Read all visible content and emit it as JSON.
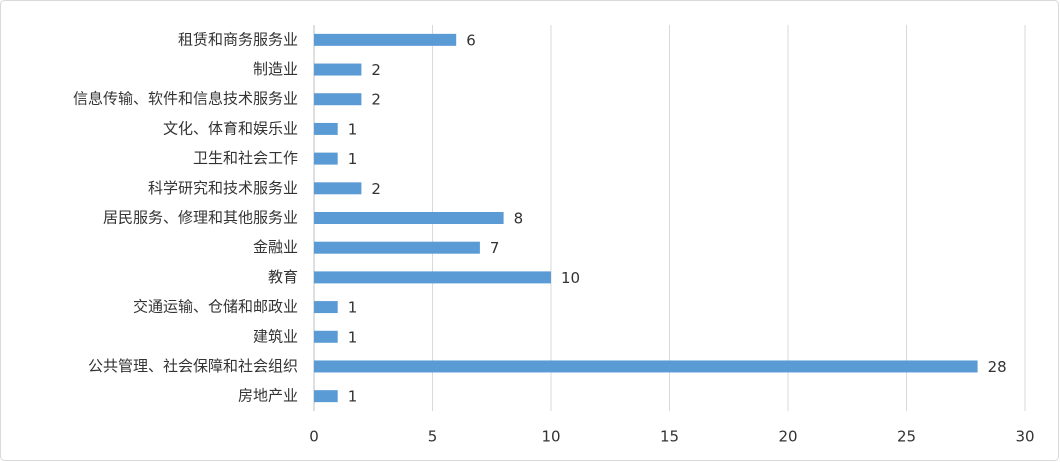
{
  "chart_data": {
    "type": "bar",
    "orientation": "horizontal",
    "categories": [
      "租赁和商务服务业",
      "制造业",
      "信息传输、软件和信息技术服务业",
      "文化、体育和娱乐业",
      "卫生和社会工作",
      "科学研究和技术服务业",
      "居民服务、修理和其他服务业",
      "金融业",
      "教育",
      "交通运输、仓储和邮政业",
      "建筑业",
      "公共管理、社会保障和社会组织",
      "房地产业"
    ],
    "values": [
      6,
      2,
      2,
      1,
      1,
      2,
      8,
      7,
      10,
      1,
      1,
      28,
      1
    ],
    "color": "#5b9bd5",
    "xlim": [
      0,
      30
    ],
    "xticks": [
      0,
      5,
      10,
      15,
      20,
      25,
      30
    ],
    "grid": true
  }
}
